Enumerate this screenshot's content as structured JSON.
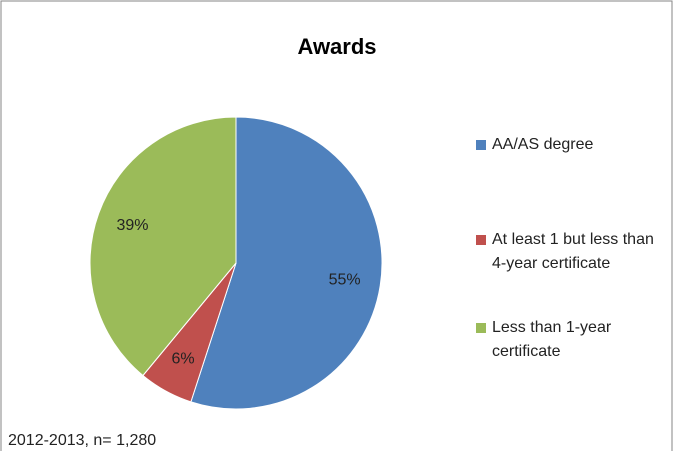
{
  "chart_data": {
    "type": "pie",
    "title": "Awards",
    "categories": [
      "AA/AS degree",
      "At least 1 but less than 4-year certificate",
      "Less than 1-year certificate"
    ],
    "values": [
      55,
      6,
      39
    ],
    "value_labels": [
      "55%",
      "6%",
      "39%"
    ],
    "colors": [
      "#4f81bd",
      "#c0504d",
      "#9bbb59"
    ],
    "legend": "right",
    "annotation": "2012-2013, n= 1,280"
  }
}
